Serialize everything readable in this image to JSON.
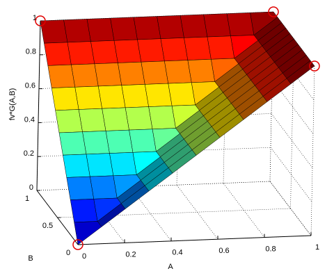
{
  "chart_data": {
    "type": "surface3d",
    "xlabel": "A",
    "ylabel": "B",
    "zlabel": "fv*G(A,B)",
    "colormap": "jet",
    "x": [
      0,
      0.1,
      0.2,
      0.3,
      0.4,
      0.5,
      0.6,
      0.7,
      0.8,
      0.9,
      1
    ],
    "y": [
      0,
      0.1,
      0.2,
      0.3,
      0.4,
      0.5,
      0.6,
      0.7,
      0.8,
      0.9,
      1
    ],
    "z": [
      [
        0,
        0.1,
        0.2,
        0.3,
        0.4,
        0.5,
        0.6,
        0.7,
        0.8,
        0.9,
        1
      ],
      [
        0.1,
        0.1,
        0.2,
        0.3,
        0.4,
        0.5,
        0.6,
        0.7,
        0.8,
        0.9,
        1
      ],
      [
        0.2,
        0.2,
        0.2,
        0.3,
        0.4,
        0.5,
        0.6,
        0.7,
        0.8,
        0.9,
        1
      ],
      [
        0.3,
        0.3,
        0.3,
        0.3,
        0.4,
        0.5,
        0.6,
        0.7,
        0.8,
        0.9,
        1
      ],
      [
        0.4,
        0.4,
        0.4,
        0.4,
        0.4,
        0.5,
        0.6,
        0.7,
        0.8,
        0.9,
        1
      ],
      [
        0.5,
        0.5,
        0.5,
        0.5,
        0.5,
        0.5,
        0.6,
        0.7,
        0.8,
        0.9,
        1
      ],
      [
        0.6,
        0.6,
        0.6,
        0.6,
        0.6,
        0.6,
        0.6,
        0.7,
        0.8,
        0.9,
        1
      ],
      [
        0.7,
        0.7,
        0.7,
        0.7,
        0.7,
        0.7,
        0.7,
        0.7,
        0.8,
        0.9,
        1
      ],
      [
        0.8,
        0.8,
        0.8,
        0.8,
        0.8,
        0.8,
        0.8,
        0.8,
        0.8,
        0.9,
        1
      ],
      [
        0.9,
        0.9,
        0.9,
        0.9,
        0.9,
        0.9,
        0.9,
        0.9,
        0.9,
        0.9,
        1
      ],
      [
        1,
        1,
        1,
        1,
        1,
        1,
        1,
        1,
        1,
        1,
        1
      ]
    ],
    "markers": {
      "x": [
        0,
        0,
        1,
        1
      ],
      "y": [
        0,
        1,
        1,
        0
      ],
      "z": [
        0,
        1,
        1,
        1
      ],
      "color": "#e00000"
    },
    "xlim": [
      0,
      1
    ],
    "ylim": [
      0,
      1
    ],
    "zlim": [
      0,
      1
    ],
    "xticks": [
      0,
      0.2,
      0.4,
      0.6,
      0.8,
      1
    ],
    "yticks": [
      0,
      0.5,
      1
    ],
    "zticks": [
      0,
      0.2,
      0.4,
      0.6,
      0.8,
      1
    ],
    "grid": true
  }
}
